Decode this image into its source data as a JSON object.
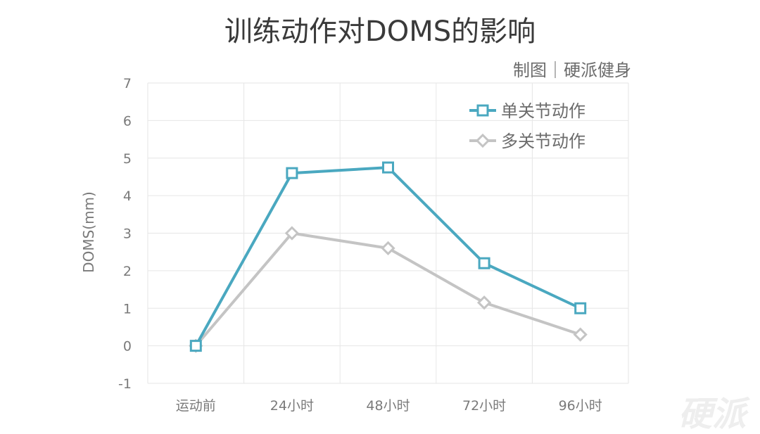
{
  "title": "训练动作对DOMS的影响",
  "credit": "制图｜硬派健身",
  "watermark": "硬派",
  "chart_data": {
    "type": "line",
    "title": "训练动作对DOMS的影响",
    "xlabel": "",
    "ylabel": "DOMS(mm)",
    "categories": [
      "运动前",
      "24小时",
      "48小时",
      "72小时",
      "96小时"
    ],
    "ylim": [
      -1,
      7
    ],
    "yticks": [
      -1,
      0,
      1,
      2,
      3,
      4,
      5,
      6,
      7
    ],
    "grid": true,
    "legend_position": "top-right",
    "series": [
      {
        "name": "单关节动作",
        "values": [
          0,
          4.6,
          4.75,
          2.2,
          1.0
        ],
        "color": "#4aa8c0",
        "marker": "square"
      },
      {
        "name": "多关节动作",
        "values": [
          0,
          3.0,
          2.6,
          1.15,
          0.3
        ],
        "color": "#c4c4c4",
        "marker": "diamond"
      }
    ]
  }
}
